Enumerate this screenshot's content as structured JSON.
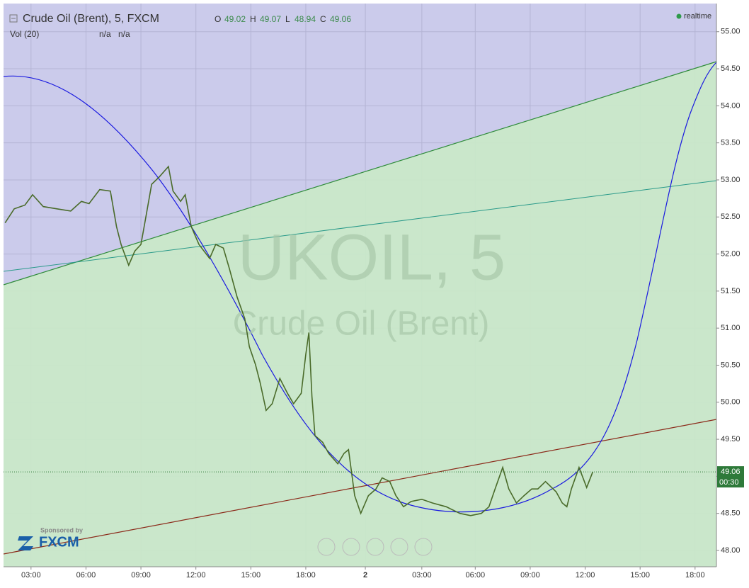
{
  "chart_data": {
    "type": "line",
    "title": "Crude Oil (Brent), 5, FXCM",
    "ohlc": {
      "o_label": "O",
      "open": 49.02,
      "h_label": "H",
      "high": 49.07,
      "l_label": "L",
      "low": 48.94,
      "c_label": "C",
      "close": 49.06
    },
    "volume": {
      "label": "Vol (20)",
      "v1": "n/a",
      "v2": "n/a"
    },
    "status": "realtime",
    "watermark": {
      "symbol": "UKOIL, 5",
      "name": "Crude Oil (Brent)"
    },
    "sponsor": {
      "text": "Sponsored by",
      "brand": "FXCM"
    },
    "color": "#4a6b2a",
    "last_price": 49.06,
    "countdown": "00:30",
    "x": [
      1,
      7,
      14,
      19,
      26,
      35,
      44,
      51,
      56,
      63,
      70,
      74,
      77,
      82,
      86,
      90,
      93,
      97,
      102,
      108,
      111,
      116,
      119,
      123,
      128,
      135,
      139,
      144,
      148,
      153,
      158,
      161,
      165,
      168,
      172,
      176,
      181,
      186,
      190,
      195,
      198,
      200,
      202,
      204,
      209,
      213,
      219,
      223,
      226,
      230,
      234,
      239,
      244,
      248,
      253,
      257,
      262,
      267,
      274,
      281,
      290,
      299,
      306,
      313,
      318,
      322,
      327,
      331,
      336,
      341,
      346,
      350,
      355,
      362,
      366,
      369,
      372,
      377,
      382,
      386
    ],
    "values": [
      52.42,
      52.61,
      52.66,
      52.8,
      52.64,
      52.61,
      52.58,
      52.71,
      52.68,
      52.87,
      52.85,
      52.37,
      52.13,
      51.85,
      52.04,
      52.13,
      52.47,
      52.94,
      53.04,
      53.18,
      52.85,
      52.71,
      52.8,
      52.37,
      52.13,
      51.94,
      52.13,
      52.08,
      51.8,
      51.42,
      51.13,
      50.75,
      50.51,
      50.27,
      49.89,
      49.98,
      50.32,
      50.12,
      49.98,
      50.12,
      50.65,
      50.94,
      50.08,
      49.55,
      49.46,
      49.31,
      49.17,
      49.31,
      49.36,
      48.74,
      48.5,
      48.74,
      48.83,
      48.98,
      48.93,
      48.74,
      48.59,
      48.66,
      48.69,
      48.64,
      48.59,
      48.5,
      48.47,
      48.5,
      48.59,
      48.83,
      49.12,
      48.83,
      48.64,
      48.74,
      48.83,
      48.83,
      48.93,
      48.79,
      48.64,
      48.59,
      48.83,
      49.12,
      48.85,
      49.06
    ],
    "xlim": [
      0,
      467
    ],
    "xticks": [
      {
        "value": 18,
        "label": "03:00"
      },
      {
        "value": 54,
        "label": "06:00"
      },
      {
        "value": 90,
        "label": "09:00"
      },
      {
        "value": 126,
        "label": "12:00"
      },
      {
        "value": 162,
        "label": "15:00"
      },
      {
        "value": 198,
        "label": "18:00"
      },
      {
        "value": 237,
        "label": "2"
      },
      {
        "value": 274,
        "label": "03:00"
      },
      {
        "value": 309,
        "label": "06:00"
      },
      {
        "value": 345,
        "label": "09:00"
      },
      {
        "value": 381,
        "label": "12:00"
      },
      {
        "value": 417,
        "label": "15:00"
      },
      {
        "value": 453,
        "label": "18:00"
      }
    ],
    "ylim": [
      47.78,
      55.38
    ],
    "yticks": [
      {
        "value": 48,
        "label": "48.00"
      },
      {
        "value": 48.5,
        "label": "48.50"
      },
      {
        "value": 49,
        "label": "49.00"
      },
      {
        "value": 49.5,
        "label": "49.50"
      },
      {
        "value": 50,
        "label": "50.00"
      },
      {
        "value": 50.5,
        "label": "50.50"
      },
      {
        "value": 51,
        "label": "51.00"
      },
      {
        "value": 51.5,
        "label": "51.50"
      },
      {
        "value": 52,
        "label": "52.00"
      },
      {
        "value": 52.5,
        "label": "52.50"
      },
      {
        "value": 53,
        "label": "53.00"
      },
      {
        "value": 53.5,
        "label": "53.50"
      },
      {
        "value": 54,
        "label": "54.00"
      },
      {
        "value": 54.5,
        "label": "54.50"
      },
      {
        "value": 55,
        "label": "55.00"
      }
    ],
    "grid": true
  }
}
